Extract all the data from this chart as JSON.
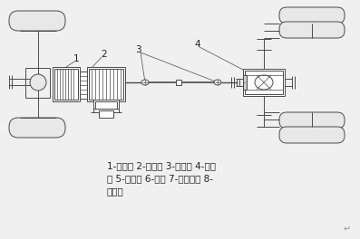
{
  "background_color": "#f0f0f0",
  "line_color": "#4a4a4a",
  "text_color": "#222222",
  "caption_line1": "1-离合器 2-变速器 3-万向节 4-驱动",
  "caption_line2": "桥 5-差速器 6-半轴 7-主减速器 8-",
  "caption_line3": "传动轴",
  "label1": "1",
  "label2": "2",
  "label3": "3",
  "label4": "4",
  "font_size_caption": 7.5,
  "font_size_label": 7.5
}
